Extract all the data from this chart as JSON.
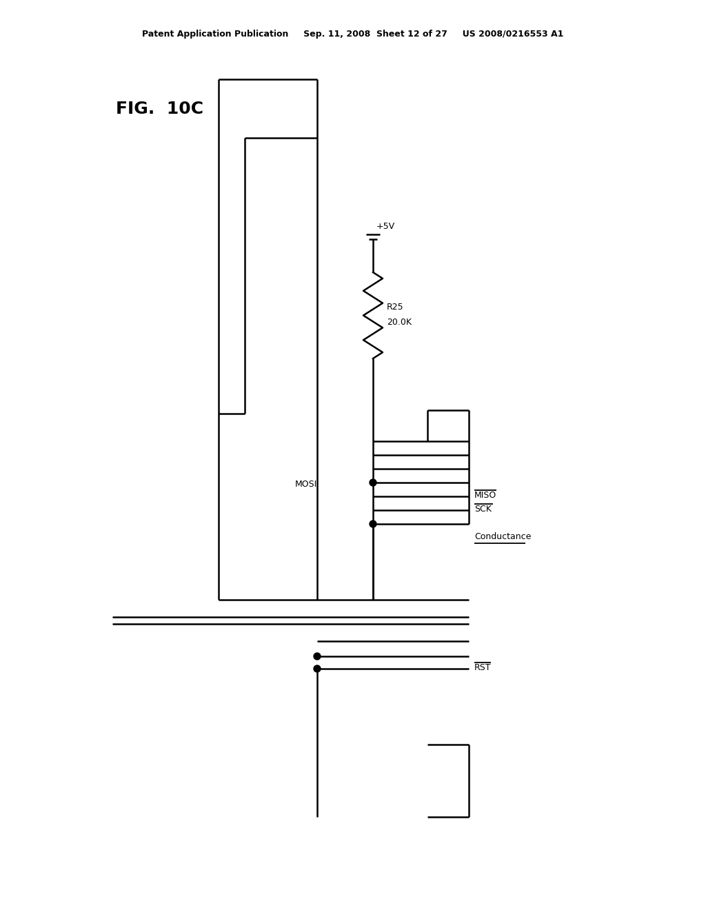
{
  "bg_color": "#ffffff",
  "line_color": "#000000",
  "header_text": "Patent Application Publication     Sep. 11, 2008  Sheet 12 of 27     US 2008/0216553 A1",
  "fig_label": "FIG.  10C",
  "labels": {
    "plus5v": "+5V",
    "r25": "R25",
    "r25_val": "20.0K",
    "mosi": "MOSI",
    "miso": "MISO",
    "sck": "SCK",
    "conductance": "Conductance",
    "rst": "RST"
  },
  "lw": 1.8
}
